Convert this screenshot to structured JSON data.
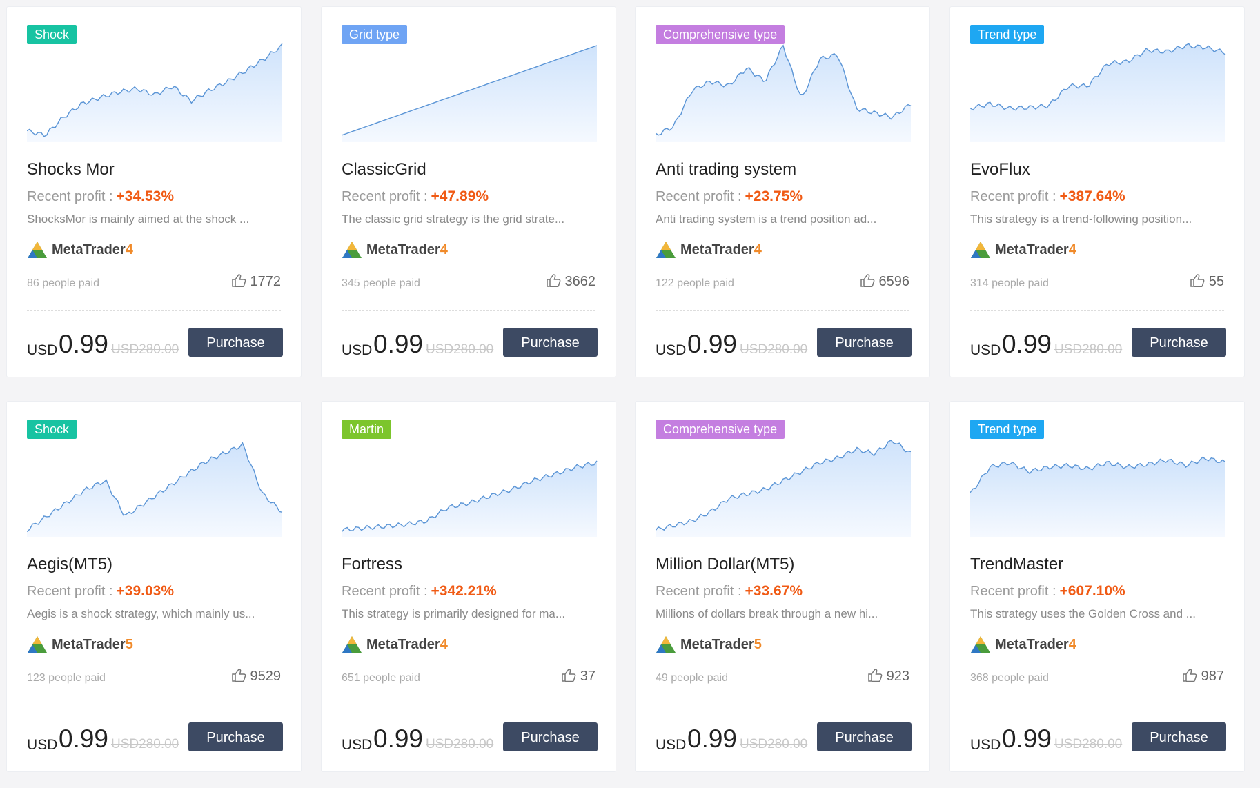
{
  "cards": [
    {
      "tag": "Shock",
      "tag_color": "#17c3a2",
      "name": "Shocks Mor",
      "profit_label": "Recent profit :",
      "profit": "+34.53%",
      "description": "ShocksMor is mainly aimed at the shock ...",
      "platform": "MetaTrader",
      "version": "4",
      "paid": "86 people paid",
      "likes": 1772,
      "currency": "USD",
      "price": "0.99",
      "old_price": "USD280.00",
      "button": "Purchase"
    },
    {
      "tag": "Grid type",
      "tag_color": "#6fa4f4",
      "name": "ClassicGrid",
      "profit_label": "Recent profit :",
      "profit": "+47.89%",
      "description": "The classic grid strategy is the grid strate...",
      "platform": "MetaTrader",
      "version": "4",
      "paid": "345 people paid",
      "likes": 3662,
      "currency": "USD",
      "price": "0.99",
      "old_price": "USD280.00",
      "button": "Purchase"
    },
    {
      "tag": "Comprehensive type",
      "tag_color": "#c47ee0",
      "name": "Anti trading system",
      "profit_label": "Recent profit :",
      "profit": "+23.75%",
      "description": "Anti trading system is a trend position ad...",
      "platform": "MetaTrader",
      "version": "4",
      "paid": "122 people paid",
      "likes": 6596,
      "currency": "USD",
      "price": "0.99",
      "old_price": "USD280.00",
      "button": "Purchase"
    },
    {
      "tag": "Trend type",
      "tag_color": "#1ea7f2",
      "name": "EvoFlux",
      "profit_label": "Recent profit :",
      "profit": "+387.64%",
      "description": "This strategy is a trend-following position...",
      "platform": "MetaTrader",
      "version": "4",
      "paid": "314 people paid",
      "likes": 55,
      "currency": "USD",
      "price": "0.99",
      "old_price": "USD280.00",
      "button": "Purchase"
    },
    {
      "tag": "Shock",
      "tag_color": "#17c3a2",
      "name": "Aegis(MT5)",
      "profit_label": "Recent profit :",
      "profit": "+39.03%",
      "description": "Aegis is a shock strategy, which mainly us...",
      "platform": "MetaTrader",
      "version": "5",
      "paid": "123 people paid",
      "likes": 9529,
      "currency": "USD",
      "price": "0.99",
      "old_price": "USD280.00",
      "button": "Purchase"
    },
    {
      "tag": "Martin",
      "tag_color": "#7cc52c",
      "name": "Fortress",
      "profit_label": "Recent profit :",
      "profit": "+342.21%",
      "description": "This strategy is primarily designed for ma...",
      "platform": "MetaTrader",
      "version": "4",
      "paid": "651 people paid",
      "likes": 37,
      "currency": "USD",
      "price": "0.99",
      "old_price": "USD280.00",
      "button": "Purchase"
    },
    {
      "tag": "Comprehensive type",
      "tag_color": "#c47ee0",
      "name": "Million Dollar(MT5)",
      "profit_label": "Recent profit :",
      "profit": "+33.67%",
      "description": "Millions of dollars break through a new hi...",
      "platform": "MetaTrader",
      "version": "5",
      "paid": "49 people paid",
      "likes": 923,
      "currency": "USD",
      "price": "0.99",
      "old_price": "USD280.00",
      "button": "Purchase"
    },
    {
      "tag": "Trend type",
      "tag_color": "#1ea7f2",
      "name": "TrendMaster",
      "profit_label": "Recent profit :",
      "profit": "+607.10%",
      "description": "This strategy uses the Golden Cross and ...",
      "platform": "MetaTrader",
      "version": "4",
      "paid": "368 people paid",
      "likes": 987,
      "currency": "USD",
      "price": "0.99",
      "old_price": "USD280.00",
      "button": "Purchase"
    }
  ]
}
